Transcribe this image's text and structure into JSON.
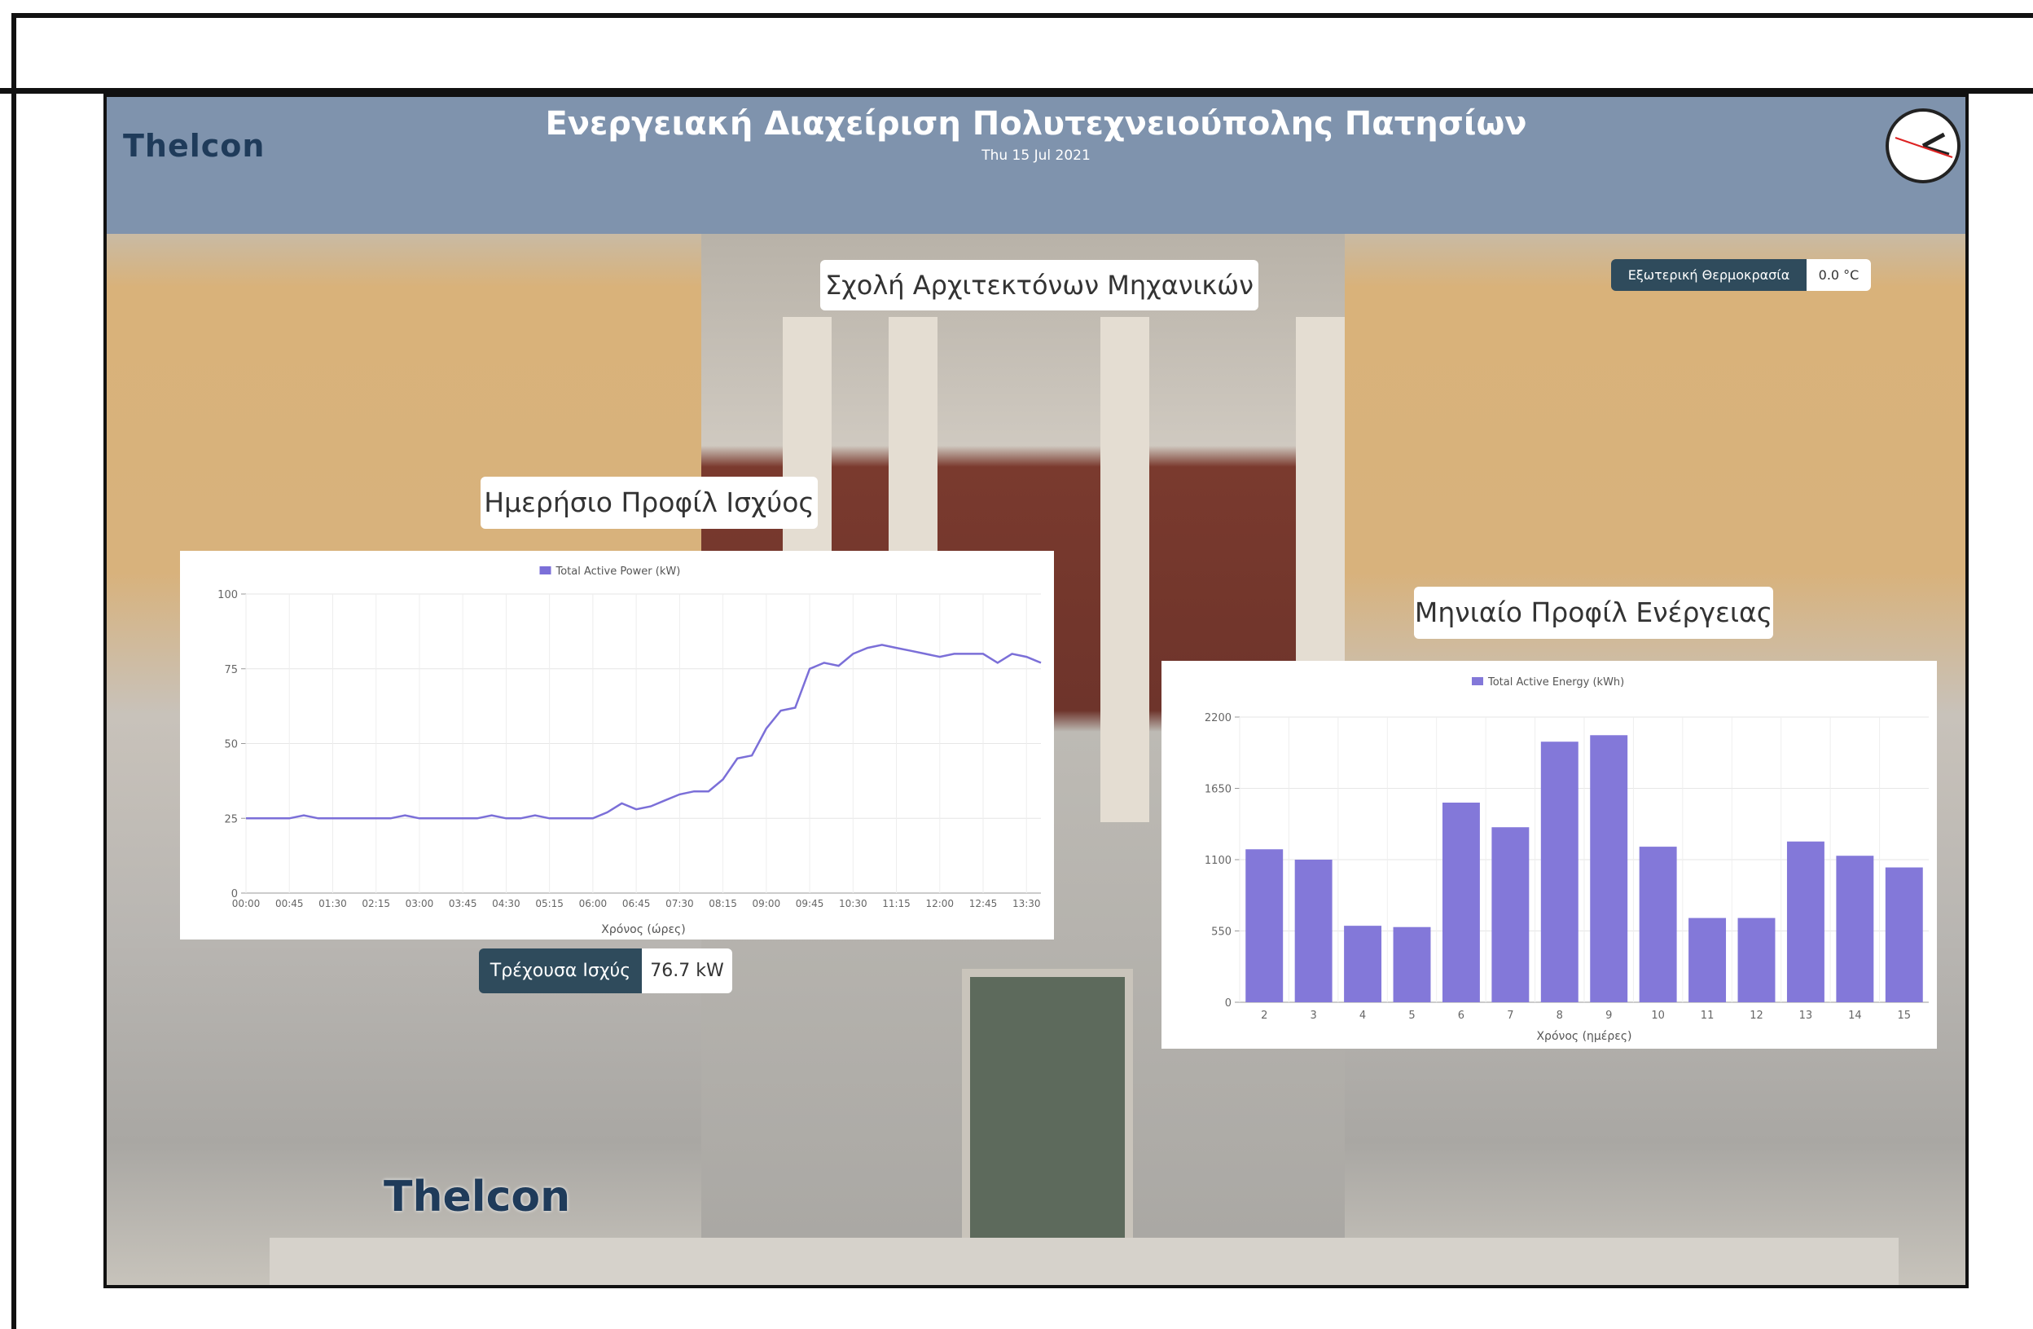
{
  "header": {
    "logo": "Thelcon",
    "title": "Ενεργειακή Διαχείριση Πολυτεχνειούπολης Πατησίων",
    "date": "Thu 15 Jul 2021"
  },
  "building": "Σχολή Αρχιτεκτόνων Μηχανικών",
  "temperature": {
    "label": "Εξωτερική Θερμοκρασία",
    "value": "0.0 °C"
  },
  "daily_panel_title": "Ημερήσιο Προφίλ Ισχύος",
  "monthly_panel_title": "Μηνιαίο Προφίλ Ενέργειας",
  "current_power": {
    "label": "Τρέχουσα Ισχύς",
    "value": "76.7 kW"
  },
  "footer_logo": "Thelcon",
  "chart_data": [
    {
      "type": "line",
      "legend": "Total Active Power (kW)",
      "x_label": "Χρόνος (ώρες)",
      "color": "#7b6fd8",
      "categories": [
        "00:00",
        null,
        null,
        "00:45",
        null,
        null,
        "01:30",
        null,
        null,
        "02:15",
        null,
        null,
        "03:00",
        null,
        null,
        "03:45",
        null,
        null,
        "04:30",
        null,
        null,
        "05:15",
        null,
        null,
        "06:00",
        null,
        null,
        "06:45",
        null,
        null,
        "07:30",
        null,
        null,
        "08:15",
        null,
        null,
        "09:00",
        null,
        null,
        "09:45",
        null,
        null,
        "10:30",
        null,
        null,
        "11:15",
        null,
        null,
        "12:00",
        null,
        null,
        "12:45",
        null,
        null,
        "13:30",
        null
      ],
      "values": [
        25,
        25,
        25,
        25,
        26,
        25,
        25,
        25,
        25,
        25,
        25,
        26,
        25,
        25,
        25,
        25,
        25,
        26,
        25,
        25,
        26,
        25,
        25,
        25,
        25,
        27,
        30,
        28,
        29,
        31,
        33,
        34,
        34,
        38,
        45,
        46,
        55,
        61,
        62,
        75,
        77,
        76,
        80,
        82,
        83,
        82,
        81,
        80,
        79,
        80,
        80,
        80,
        77,
        80,
        79,
        77
      ],
      "ylim": [
        0,
        100
      ],
      "yticks": [
        0,
        25,
        50,
        75,
        100
      ],
      "grid": true
    },
    {
      "type": "bar",
      "legend": "Total Active Energy (kWh)",
      "x_label": "Χρόνος (ημέρες)",
      "color": "#8378d9",
      "categories": [
        "2",
        "3",
        "4",
        "5",
        "6",
        "7",
        "8",
        "9",
        "10",
        "11",
        "12",
        "13",
        "14",
        "15"
      ],
      "values": [
        1180,
        1100,
        590,
        580,
        1540,
        1350,
        2010,
        2060,
        1200,
        650,
        650,
        1240,
        1130,
        1040
      ],
      "ylim": [
        0,
        2200
      ],
      "yticks": [
        0,
        550,
        1100,
        1650,
        2200
      ],
      "grid": true
    }
  ]
}
